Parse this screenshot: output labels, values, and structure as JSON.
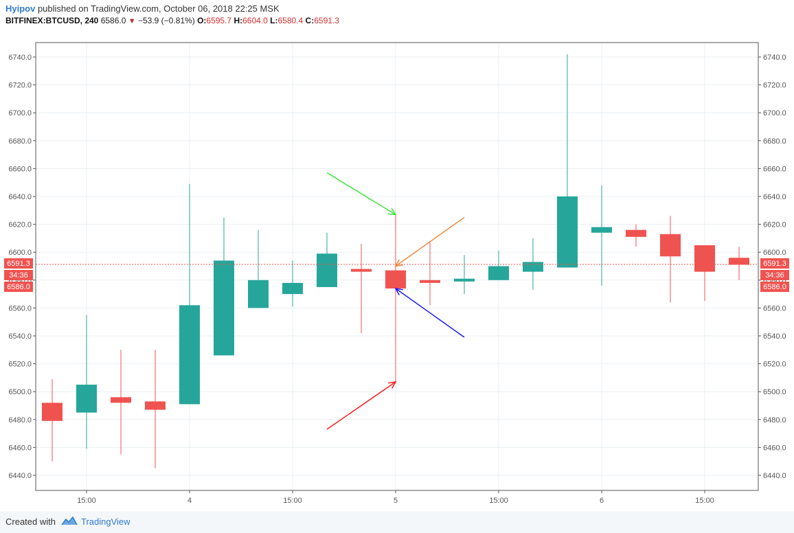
{
  "header": {
    "author": "Hyipov",
    "published_text": " published on TradingView.com, October 06, 2018 22:25 MSK",
    "symbol": "BITFINEX:BTCUSD, 240",
    "last_price": "6586.0",
    "change": "−53.9 (−0.81%)",
    "open_label": "O:",
    "open": "6595.7",
    "high_label": "H:",
    "high": "6604.0",
    "low_label": "L:",
    "low": "6580.4",
    "close_label": "C:",
    "close": "6591.3"
  },
  "badges": {
    "price_line": "6591.3",
    "countdown": "34:36",
    "last": "6586.0"
  },
  "footer": {
    "created_with": "Created with",
    "brand": "TradingView"
  },
  "colors": {
    "up": "#26a69a",
    "down": "#ef5350",
    "grid": "#e9eff3",
    "price_line": "#ef5350",
    "arrow_green": "#39e639",
    "arrow_orange": "#f0883a",
    "arrow_blue": "#1a1aff",
    "arrow_red": "#ff1a1a"
  },
  "chart_data": {
    "type": "candlestick",
    "yticks": [
      6440.0,
      6460.0,
      6480.0,
      6500.0,
      6520.0,
      6540.0,
      6560.0,
      6580.0,
      6600.0,
      6620.0,
      6640.0,
      6660.0,
      6680.0,
      6700.0,
      6720.0,
      6740.0
    ],
    "ylim": [
      6430,
      6750
    ],
    "xticks": [
      {
        "index": 1,
        "label": "15:00"
      },
      {
        "index": 4,
        "label": "4"
      },
      {
        "index": 7,
        "label": "15:00"
      },
      {
        "index": 10,
        "label": "5"
      },
      {
        "index": 13,
        "label": "15:00"
      },
      {
        "index": 16,
        "label": "6"
      },
      {
        "index": 19,
        "label": "15:00"
      }
    ],
    "candles": [
      {
        "o": 6492,
        "h": 6509,
        "l": 6450,
        "c": 6479
      },
      {
        "o": 6485,
        "h": 6555,
        "l": 6459,
        "c": 6505
      },
      {
        "o": 6496,
        "h": 6530,
        "l": 6455,
        "c": 6492
      },
      {
        "o": 6493,
        "h": 6530,
        "l": 6445,
        "c": 6487
      },
      {
        "o": 6491,
        "h": 6649,
        "l": 6491,
        "c": 6562
      },
      {
        "o": 6526,
        "h": 6625,
        "l": 6526,
        "c": 6594
      },
      {
        "o": 6560,
        "h": 6616,
        "l": 6560,
        "c": 6580
      },
      {
        "o": 6570,
        "h": 6594,
        "l": 6561,
        "c": 6578
      },
      {
        "o": 6575,
        "h": 6614,
        "l": 6575,
        "c": 6599
      },
      {
        "o": 6588,
        "h": 6606,
        "l": 6542,
        "c": 6586
      },
      {
        "o": 6587,
        "h": 6627,
        "l": 6507,
        "c": 6574
      },
      {
        "o": 6580,
        "h": 6608,
        "l": 6562,
        "c": 6578
      },
      {
        "o": 6579,
        "h": 6598,
        "l": 6570,
        "c": 6581
      },
      {
        "o": 6580,
        "h": 6601,
        "l": 6580,
        "c": 6590
      },
      {
        "o": 6586,
        "h": 6610,
        "l": 6573,
        "c": 6593
      },
      {
        "o": 6589,
        "h": 6742,
        "l": 6589,
        "c": 6640
      },
      {
        "o": 6614,
        "h": 6648,
        "l": 6576,
        "c": 6618
      },
      {
        "o": 6616,
        "h": 6620,
        "l": 6604,
        "c": 6611
      },
      {
        "o": 6613,
        "h": 6626,
        "l": 6564,
        "c": 6597
      },
      {
        "o": 6605,
        "h": 6605,
        "l": 6565,
        "c": 6586
      },
      {
        "o": 6596,
        "h": 6604,
        "l": 6580,
        "c": 6591
      }
    ],
    "price_line": 6591.3,
    "annotations": [
      {
        "name": "arrow-green",
        "from": [
          8.0,
          6657
        ],
        "to": [
          10.0,
          6627
        ],
        "color": "#39e639"
      },
      {
        "name": "arrow-orange",
        "from": [
          12.0,
          6625
        ],
        "to": [
          10.0,
          6590
        ],
        "color": "#f0883a"
      },
      {
        "name": "arrow-blue",
        "from": [
          12.0,
          6539
        ],
        "to": [
          10.0,
          6574
        ],
        "color": "#1a1aff"
      },
      {
        "name": "arrow-red",
        "from": [
          8.0,
          6473
        ],
        "to": [
          10.0,
          6507
        ],
        "color": "#ff1a1a"
      }
    ]
  }
}
